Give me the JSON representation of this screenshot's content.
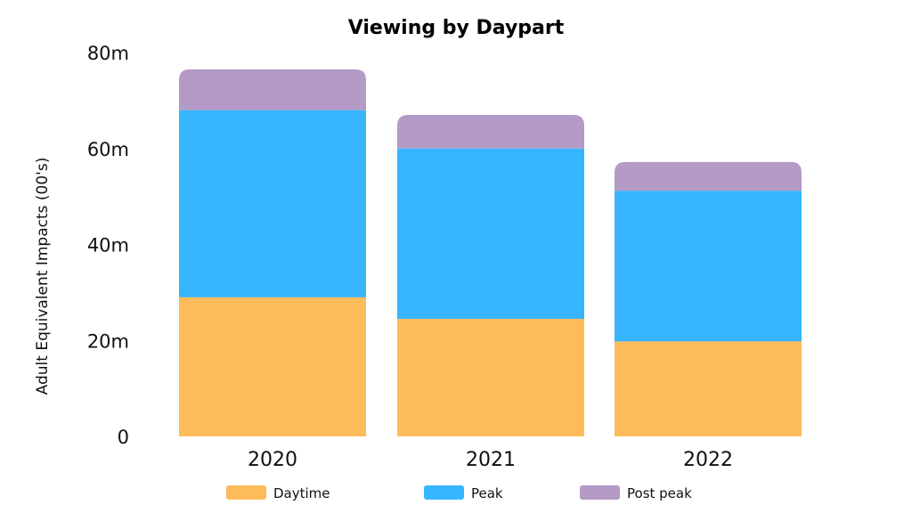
{
  "chart_data": {
    "type": "bar",
    "stacked": true,
    "title": "Viewing by Daypart",
    "xlabel": "",
    "ylabel": "Adult Equivalent Impacts (00's)",
    "categories": [
      "2020",
      "2021",
      "2022"
    ],
    "ylim": [
      0,
      80
    ],
    "yticks": [
      0,
      20,
      40,
      60,
      80
    ],
    "ytick_labels": [
      "0",
      "20m",
      "40m",
      "60m",
      "80m"
    ],
    "grid": false,
    "legend_position": "bottom",
    "series": [
      {
        "name": "Daytime",
        "color": "#FDBB5A",
        "values": [
          29,
          24.5,
          19.8
        ]
      },
      {
        "name": "Peak",
        "color": "#38B5FF",
        "values": [
          39,
          35.5,
          31.4
        ]
      },
      {
        "name": "Post peak",
        "color": "#B49AC6",
        "values": [
          8.5,
          7,
          6
        ]
      }
    ]
  }
}
